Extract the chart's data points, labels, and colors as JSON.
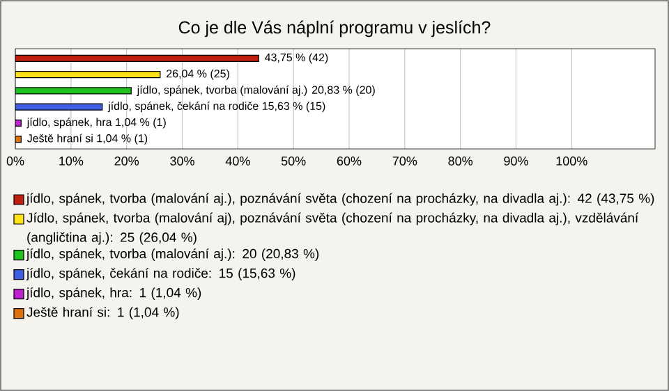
{
  "chart_data": {
    "type": "bar",
    "orientation": "horizontal",
    "title": "Co je dle Vás náplní programu v jeslích?",
    "categories": [
      null,
      null,
      null,
      null,
      null,
      null
    ],
    "series": [
      {
        "name": "jídlo, spánek, tvorba (malování aj.), poznávání světa (chození na procházky, na divadla aj.): 42 (43,75 %)",
        "color": "#c0200f",
        "values": [
          43.75,
          null,
          null,
          null,
          null,
          null
        ],
        "value_labels": [
          "43,75 % (42)",
          null,
          null,
          null,
          null,
          null
        ]
      },
      {
        "name": "Jídlo, spánek, tvorba (malování aj), poznávání světa (chození na procházky, na divadla aj.), vzdělávání (angličtina aj.): 25 (26,04 %)",
        "color": "#ffe21a",
        "values": [
          null,
          26.04,
          null,
          null,
          null,
          null
        ],
        "value_labels": [
          null,
          "26,04 % (25)",
          null,
          null,
          null,
          null
        ]
      },
      {
        "name": "jídlo, spánek, tvorba (malování aj.): 20 (20,83 %)",
        "color": "#1fc21f",
        "values": [
          null,
          null,
          20.83,
          null,
          null,
          null
        ],
        "value_labels": [
          null,
          null,
          "jídlo, spánek, tvorba (malování aj.) 20,83 % (20)",
          null,
          null,
          null
        ]
      },
      {
        "name": "jídlo, spánek, čekání na rodiče: 15 (15,63 %)",
        "color": "#3f5fe0",
        "values": [
          null,
          null,
          null,
          15.63,
          null,
          null
        ],
        "value_labels": [
          null,
          null,
          null,
          "jídlo, spánek, čekání na rodiče 15,63 % (15)",
          null,
          null
        ]
      },
      {
        "name": "jídlo, spánek, hra: 1 (1,04 %)",
        "color": "#c020d0",
        "values": [
          null,
          null,
          null,
          null,
          1.04,
          null
        ],
        "value_labels": [
          null,
          null,
          null,
          null,
          "jídlo, spánek, hra 1,04 % (1)",
          null
        ]
      },
      {
        "name": "Ještě hraní si: 1 (1,04 %)",
        "color": "#e07010",
        "values": [
          null,
          null,
          null,
          null,
          null,
          1.04
        ],
        "value_labels": [
          null,
          null,
          null,
          null,
          null,
          "Ještě hraní si 1,04 % (1)"
        ]
      }
    ],
    "xlim": [
      0,
      115
    ],
    "xticks": [
      {
        "value": 0,
        "label": "0%"
      },
      {
        "value": 10,
        "label": "10%"
      },
      {
        "value": 20,
        "label": "20%"
      },
      {
        "value": 30,
        "label": "30%"
      },
      {
        "value": 40,
        "label": "40%"
      },
      {
        "value": 50,
        "label": "50%"
      },
      {
        "value": 60,
        "label": "60%"
      },
      {
        "value": 70,
        "label": "70%"
      },
      {
        "value": 80,
        "label": "80%"
      },
      {
        "value": 90,
        "label": "90%"
      },
      {
        "value": 100,
        "label": "100%"
      }
    ],
    "grid": "x",
    "legend": "bottom"
  }
}
